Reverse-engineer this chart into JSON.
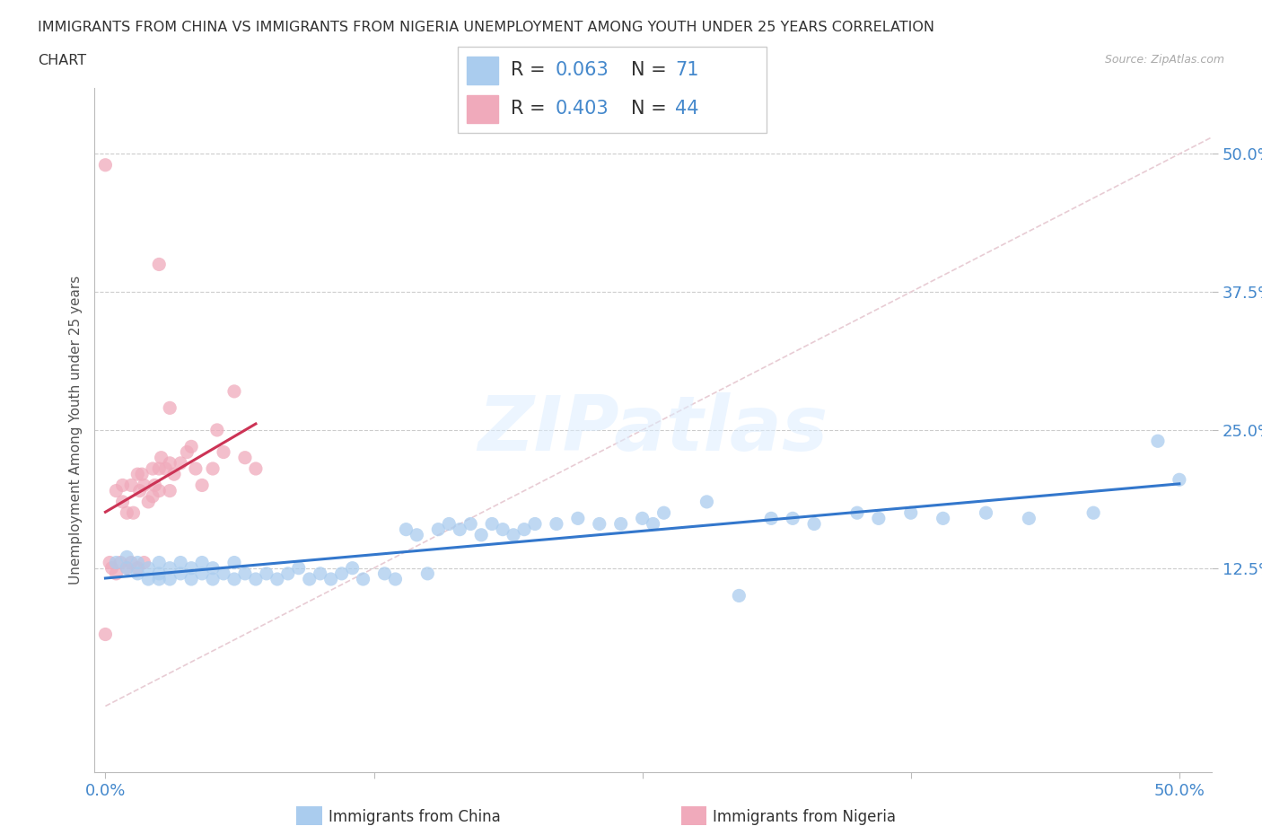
{
  "title_line1": "IMMIGRANTS FROM CHINA VS IMMIGRANTS FROM NIGERIA UNEMPLOYMENT AMONG YOUTH UNDER 25 YEARS CORRELATION",
  "title_line2": "CHART",
  "source_text": "Source: ZipAtlas.com",
  "ylabel": "Unemployment Among Youth under 25 years",
  "xlim": [
    -0.005,
    0.515
  ],
  "ylim": [
    -0.06,
    0.56
  ],
  "xtick_vals": [
    0.0,
    0.125,
    0.25,
    0.375,
    0.5
  ],
  "xticklabels": [
    "0.0%",
    "",
    "",
    "",
    "50.0%"
  ],
  "ytick_vals": [
    0.125,
    0.25,
    0.375,
    0.5
  ],
  "yticklabels": [
    "12.5%",
    "25.0%",
    "37.5%",
    "50.0%"
  ],
  "china_R": 0.063,
  "china_N": 71,
  "nigeria_R": 0.403,
  "nigeria_N": 44,
  "watermark": "ZIPatlas",
  "china_color": "#aaccee",
  "nigeria_color": "#f0aabb",
  "china_line_color": "#3377cc",
  "nigeria_line_color": "#cc3355",
  "diagonal_color": "#e8ccd4",
  "china_scatter_x": [
    0.005,
    0.01,
    0.01,
    0.015,
    0.015,
    0.02,
    0.02,
    0.025,
    0.025,
    0.025,
    0.03,
    0.03,
    0.035,
    0.035,
    0.04,
    0.04,
    0.045,
    0.045,
    0.05,
    0.05,
    0.055,
    0.06,
    0.06,
    0.065,
    0.07,
    0.075,
    0.08,
    0.085,
    0.09,
    0.095,
    0.1,
    0.105,
    0.11,
    0.115,
    0.12,
    0.13,
    0.135,
    0.14,
    0.145,
    0.15,
    0.155,
    0.16,
    0.165,
    0.17,
    0.175,
    0.18,
    0.185,
    0.19,
    0.195,
    0.2,
    0.21,
    0.22,
    0.23,
    0.24,
    0.25,
    0.255,
    0.26,
    0.28,
    0.295,
    0.31,
    0.32,
    0.33,
    0.35,
    0.36,
    0.375,
    0.39,
    0.41,
    0.43,
    0.46,
    0.49,
    0.5
  ],
  "china_scatter_y": [
    0.13,
    0.125,
    0.135,
    0.12,
    0.13,
    0.115,
    0.125,
    0.115,
    0.12,
    0.13,
    0.115,
    0.125,
    0.12,
    0.13,
    0.115,
    0.125,
    0.12,
    0.13,
    0.115,
    0.125,
    0.12,
    0.115,
    0.13,
    0.12,
    0.115,
    0.12,
    0.115,
    0.12,
    0.125,
    0.115,
    0.12,
    0.115,
    0.12,
    0.125,
    0.115,
    0.12,
    0.115,
    0.16,
    0.155,
    0.12,
    0.16,
    0.165,
    0.16,
    0.165,
    0.155,
    0.165,
    0.16,
    0.155,
    0.16,
    0.165,
    0.165,
    0.17,
    0.165,
    0.165,
    0.17,
    0.165,
    0.175,
    0.185,
    0.1,
    0.17,
    0.17,
    0.165,
    0.175,
    0.17,
    0.175,
    0.17,
    0.175,
    0.17,
    0.175,
    0.24,
    0.205
  ],
  "nigeria_scatter_x": [
    0.0,
    0.0,
    0.002,
    0.003,
    0.005,
    0.005,
    0.007,
    0.008,
    0.008,
    0.01,
    0.01,
    0.012,
    0.012,
    0.013,
    0.015,
    0.015,
    0.016,
    0.017,
    0.018,
    0.018,
    0.02,
    0.022,
    0.022,
    0.023,
    0.025,
    0.025,
    0.026,
    0.028,
    0.03,
    0.03,
    0.032,
    0.035,
    0.038,
    0.04,
    0.042,
    0.045,
    0.05,
    0.052,
    0.055,
    0.06,
    0.065,
    0.07,
    0.025,
    0.03
  ],
  "nigeria_scatter_y": [
    0.49,
    0.065,
    0.13,
    0.125,
    0.12,
    0.195,
    0.13,
    0.185,
    0.2,
    0.125,
    0.175,
    0.13,
    0.2,
    0.175,
    0.125,
    0.21,
    0.195,
    0.21,
    0.13,
    0.2,
    0.185,
    0.19,
    0.215,
    0.2,
    0.195,
    0.215,
    0.225,
    0.215,
    0.195,
    0.22,
    0.21,
    0.22,
    0.23,
    0.235,
    0.215,
    0.2,
    0.215,
    0.25,
    0.23,
    0.285,
    0.225,
    0.215,
    0.4,
    0.27
  ]
}
